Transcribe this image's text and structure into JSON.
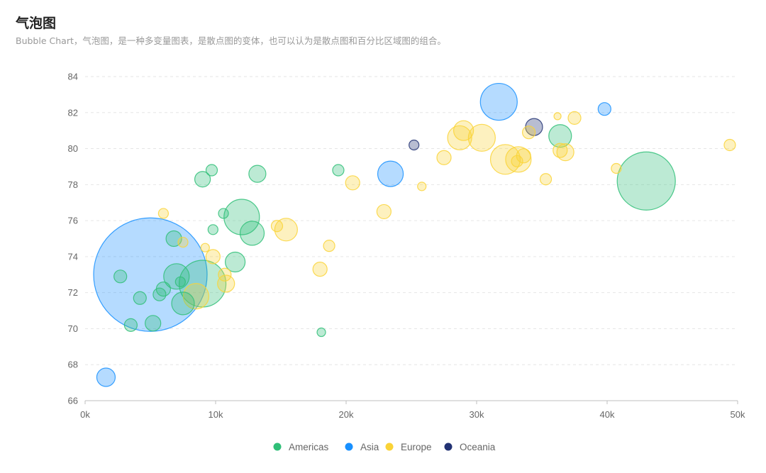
{
  "chart_data": {
    "type": "scatter",
    "subtype": "bubble",
    "title": "气泡图",
    "subtitle": "Bubble Chart，气泡图，是一种多变量图表，是散点图的变体，也可以认为是散点图和百分比区域图的组合。",
    "xlabel": "",
    "ylabel": "",
    "xlim": [
      0,
      50000
    ],
    "ylim": [
      66,
      84
    ],
    "x_ticks": [
      0,
      10000,
      20000,
      30000,
      40000,
      50000
    ],
    "x_tick_labels": [
      "0k",
      "10k",
      "20k",
      "30k",
      "40k",
      "50k"
    ],
    "y_ticks": [
      66,
      68,
      70,
      72,
      74,
      76,
      78,
      80,
      82,
      84
    ],
    "y_tick_labels": [
      "66",
      "68",
      "70",
      "72",
      "74",
      "76",
      "78",
      "80",
      "82",
      "84"
    ],
    "grid": "horizontal-dashed",
    "legend_position": "bottom-center",
    "series": [
      {
        "name": "Americas",
        "color": "#30BF78",
        "points": [
          [
            43000,
            78.2,
            41
          ],
          [
            36400,
            80.7,
            16
          ],
          [
            13200,
            78.6,
            12
          ],
          [
            9000,
            78.3,
            11
          ],
          [
            9700,
            78.8,
            8
          ],
          [
            19400,
            78.8,
            8
          ],
          [
            10600,
            76.4,
            7
          ],
          [
            9800,
            75.5,
            7
          ],
          [
            12000,
            76.2,
            25
          ],
          [
            12800,
            75.3,
            17
          ],
          [
            11500,
            73.7,
            14
          ],
          [
            9000,
            72.5,
            33
          ],
          [
            7000,
            72.9,
            18
          ],
          [
            6800,
            75.0,
            11
          ],
          [
            7500,
            71.4,
            16
          ],
          [
            6000,
            72.2,
            10
          ],
          [
            5700,
            71.9,
            9
          ],
          [
            7300,
            72.6,
            7
          ],
          [
            4200,
            71.7,
            9
          ],
          [
            2700,
            72.9,
            9
          ],
          [
            3500,
            70.2,
            9
          ],
          [
            5200,
            70.3,
            11
          ],
          [
            18100,
            69.8,
            6
          ]
        ]
      },
      {
        "name": "Asia",
        "color": "#1890FF",
        "points": [
          [
            5000,
            73.0,
            80
          ],
          [
            31700,
            82.6,
            26
          ],
          [
            23400,
            78.6,
            18
          ],
          [
            39800,
            82.2,
            9
          ],
          [
            1600,
            67.3,
            13
          ]
        ]
      },
      {
        "name": "Europe",
        "color": "#FAD337",
        "points": [
          [
            28700,
            80.6,
            17
          ],
          [
            30400,
            80.6,
            19
          ],
          [
            29000,
            81.0,
            14
          ],
          [
            32200,
            79.4,
            21
          ],
          [
            33200,
            79.4,
            18
          ],
          [
            33600,
            79.6,
            10
          ],
          [
            33100,
            79.3,
            8
          ],
          [
            34000,
            80.9,
            9
          ],
          [
            36400,
            79.9,
            10
          ],
          [
            36800,
            79.8,
            12
          ],
          [
            37500,
            81.7,
            9
          ],
          [
            36200,
            81.8,
            5
          ],
          [
            35300,
            78.3,
            8
          ],
          [
            40700,
            78.9,
            7
          ],
          [
            49400,
            80.2,
            8
          ],
          [
            27500,
            79.5,
            10
          ],
          [
            25800,
            77.9,
            6
          ],
          [
            20500,
            78.1,
            10
          ],
          [
            22900,
            76.5,
            10
          ],
          [
            18700,
            74.6,
            8
          ],
          [
            18000,
            73.3,
            10
          ],
          [
            15400,
            75.5,
            16
          ],
          [
            14700,
            75.7,
            8
          ],
          [
            10800,
            72.5,
            12
          ],
          [
            10700,
            73.0,
            9
          ],
          [
            9800,
            74.0,
            10
          ],
          [
            9200,
            74.5,
            6
          ],
          [
            8500,
            71.8,
            18
          ],
          [
            7500,
            74.8,
            7
          ],
          [
            6000,
            76.4,
            7
          ]
        ]
      },
      {
        "name": "Oceania",
        "color": "#223273",
        "points": [
          [
            34400,
            81.2,
            12
          ],
          [
            25200,
            80.2,
            7
          ]
        ]
      }
    ]
  }
}
